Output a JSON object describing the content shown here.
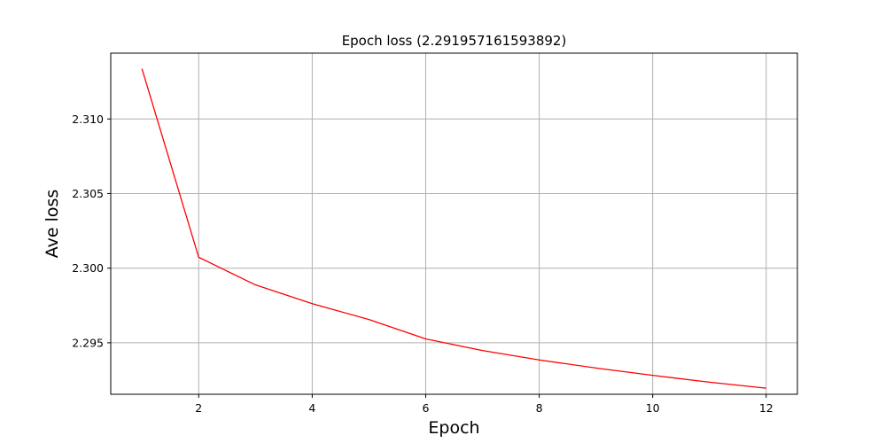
{
  "chart_data": {
    "type": "line",
    "title": "Epoch loss (2.291957161593892)",
    "xlabel": "Epoch",
    "ylabel": "Ave loss",
    "xlim": [
      0.45,
      12.55
    ],
    "ylim": [
      2.29155,
      2.31441
    ],
    "x_ticks": [
      2,
      4,
      6,
      8,
      10,
      12
    ],
    "x_tick_labels": [
      "2",
      "4",
      "6",
      "8",
      "10",
      "12"
    ],
    "y_ticks": [
      2.295,
      2.3,
      2.305,
      2.31
    ],
    "y_tick_labels": [
      "2.295",
      "2.300",
      "2.305",
      "2.310"
    ],
    "grid": true,
    "series": [
      {
        "color": "#ff0000",
        "x": [
          1,
          2,
          3,
          4,
          5,
          6,
          7,
          8,
          9,
          10,
          11,
          12
        ],
        "y": [
          2.31337,
          2.30073,
          2.29888,
          2.29762,
          2.29656,
          2.29526,
          2.29448,
          2.29385,
          2.29331,
          2.29282,
          2.29236,
          2.29196
        ]
      }
    ]
  }
}
